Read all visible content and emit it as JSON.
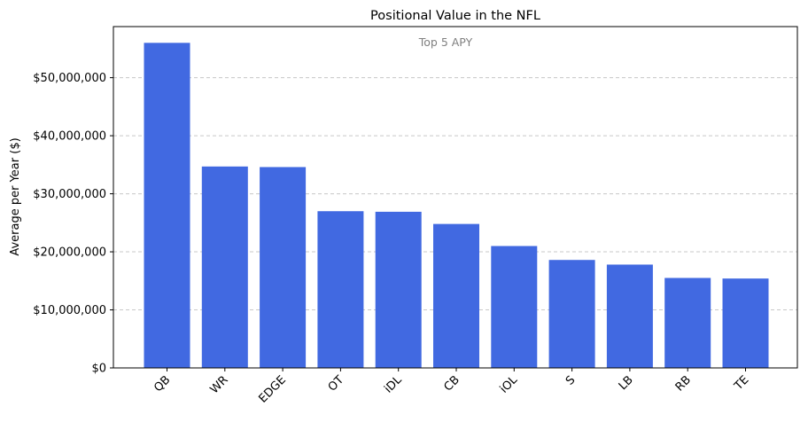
{
  "chart_data": {
    "type": "bar",
    "title": "Positional Value in the NFL",
    "subtitle": "Top 5 APY",
    "xlabel": "",
    "ylabel": "Average per Year ($)",
    "categories": [
      "QB",
      "WR",
      "EDGE",
      "OT",
      "iDL",
      "CB",
      "iOL",
      "S",
      "LB",
      "RB",
      "TE"
    ],
    "values": [
      56000000,
      34700000,
      34600000,
      27000000,
      26900000,
      24800000,
      21000000,
      18600000,
      17800000,
      15500000,
      15400000
    ],
    "ylim": [
      0,
      58800000
    ],
    "yticks": [
      0,
      10000000,
      20000000,
      30000000,
      40000000,
      50000000
    ],
    "ytick_labels": [
      "$0",
      "$10,000,000",
      "$20,000,000",
      "$30,000,000",
      "$40,000,000",
      "$50,000,000"
    ],
    "grid": "y-dashed",
    "colors": {
      "bar": "#4169e1",
      "grid": "#c8c8c8",
      "subtitle": "#808080",
      "axis": "#000000"
    }
  }
}
